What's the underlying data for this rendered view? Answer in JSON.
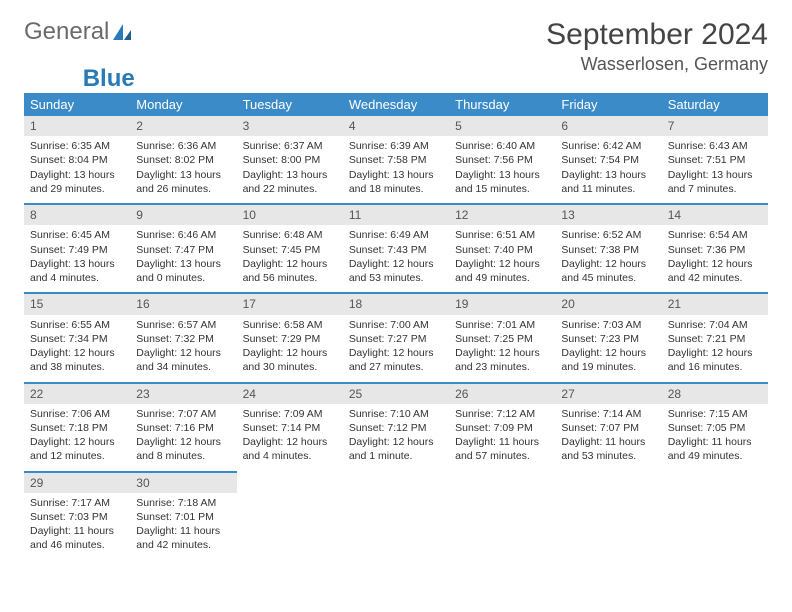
{
  "brand": {
    "general": "General",
    "blue": "Blue"
  },
  "title": "September 2024",
  "location": "Wasserlosen, Germany",
  "header_color": "#3b8bc9",
  "weekday_bg": "#e7e7e7",
  "weekdays": [
    "Sunday",
    "Monday",
    "Tuesday",
    "Wednesday",
    "Thursday",
    "Friday",
    "Saturday"
  ],
  "days": [
    {
      "n": 1,
      "sunrise": "6:35 AM",
      "sunset": "8:04 PM",
      "daylight": "13 hours and 29 minutes."
    },
    {
      "n": 2,
      "sunrise": "6:36 AM",
      "sunset": "8:02 PM",
      "daylight": "13 hours and 26 minutes."
    },
    {
      "n": 3,
      "sunrise": "6:37 AM",
      "sunset": "8:00 PM",
      "daylight": "13 hours and 22 minutes."
    },
    {
      "n": 4,
      "sunrise": "6:39 AM",
      "sunset": "7:58 PM",
      "daylight": "13 hours and 18 minutes."
    },
    {
      "n": 5,
      "sunrise": "6:40 AM",
      "sunset": "7:56 PM",
      "daylight": "13 hours and 15 minutes."
    },
    {
      "n": 6,
      "sunrise": "6:42 AM",
      "sunset": "7:54 PM",
      "daylight": "13 hours and 11 minutes."
    },
    {
      "n": 7,
      "sunrise": "6:43 AM",
      "sunset": "7:51 PM",
      "daylight": "13 hours and 7 minutes."
    },
    {
      "n": 8,
      "sunrise": "6:45 AM",
      "sunset": "7:49 PM",
      "daylight": "13 hours and 4 minutes."
    },
    {
      "n": 9,
      "sunrise": "6:46 AM",
      "sunset": "7:47 PM",
      "daylight": "13 hours and 0 minutes."
    },
    {
      "n": 10,
      "sunrise": "6:48 AM",
      "sunset": "7:45 PM",
      "daylight": "12 hours and 56 minutes."
    },
    {
      "n": 11,
      "sunrise": "6:49 AM",
      "sunset": "7:43 PM",
      "daylight": "12 hours and 53 minutes."
    },
    {
      "n": 12,
      "sunrise": "6:51 AM",
      "sunset": "7:40 PM",
      "daylight": "12 hours and 49 minutes."
    },
    {
      "n": 13,
      "sunrise": "6:52 AM",
      "sunset": "7:38 PM",
      "daylight": "12 hours and 45 minutes."
    },
    {
      "n": 14,
      "sunrise": "6:54 AM",
      "sunset": "7:36 PM",
      "daylight": "12 hours and 42 minutes."
    },
    {
      "n": 15,
      "sunrise": "6:55 AM",
      "sunset": "7:34 PM",
      "daylight": "12 hours and 38 minutes."
    },
    {
      "n": 16,
      "sunrise": "6:57 AM",
      "sunset": "7:32 PM",
      "daylight": "12 hours and 34 minutes."
    },
    {
      "n": 17,
      "sunrise": "6:58 AM",
      "sunset": "7:29 PM",
      "daylight": "12 hours and 30 minutes."
    },
    {
      "n": 18,
      "sunrise": "7:00 AM",
      "sunset": "7:27 PM",
      "daylight": "12 hours and 27 minutes."
    },
    {
      "n": 19,
      "sunrise": "7:01 AM",
      "sunset": "7:25 PM",
      "daylight": "12 hours and 23 minutes."
    },
    {
      "n": 20,
      "sunrise": "7:03 AM",
      "sunset": "7:23 PM",
      "daylight": "12 hours and 19 minutes."
    },
    {
      "n": 21,
      "sunrise": "7:04 AM",
      "sunset": "7:21 PM",
      "daylight": "12 hours and 16 minutes."
    },
    {
      "n": 22,
      "sunrise": "7:06 AM",
      "sunset": "7:18 PM",
      "daylight": "12 hours and 12 minutes."
    },
    {
      "n": 23,
      "sunrise": "7:07 AM",
      "sunset": "7:16 PM",
      "daylight": "12 hours and 8 minutes."
    },
    {
      "n": 24,
      "sunrise": "7:09 AM",
      "sunset": "7:14 PM",
      "daylight": "12 hours and 4 minutes."
    },
    {
      "n": 25,
      "sunrise": "7:10 AM",
      "sunset": "7:12 PM",
      "daylight": "12 hours and 1 minute."
    },
    {
      "n": 26,
      "sunrise": "7:12 AM",
      "sunset": "7:09 PM",
      "daylight": "11 hours and 57 minutes."
    },
    {
      "n": 27,
      "sunrise": "7:14 AM",
      "sunset": "7:07 PM",
      "daylight": "11 hours and 53 minutes."
    },
    {
      "n": 28,
      "sunrise": "7:15 AM",
      "sunset": "7:05 PM",
      "daylight": "11 hours and 49 minutes."
    },
    {
      "n": 29,
      "sunrise": "7:17 AM",
      "sunset": "7:03 PM",
      "daylight": "11 hours and 46 minutes."
    },
    {
      "n": 30,
      "sunrise": "7:18 AM",
      "sunset": "7:01 PM",
      "daylight": "11 hours and 42 minutes."
    }
  ],
  "labels": {
    "sunrise": "Sunrise:",
    "sunset": "Sunset:",
    "daylight": "Daylight:"
  },
  "first_weekday_index": 0,
  "trailing_empty": 5
}
